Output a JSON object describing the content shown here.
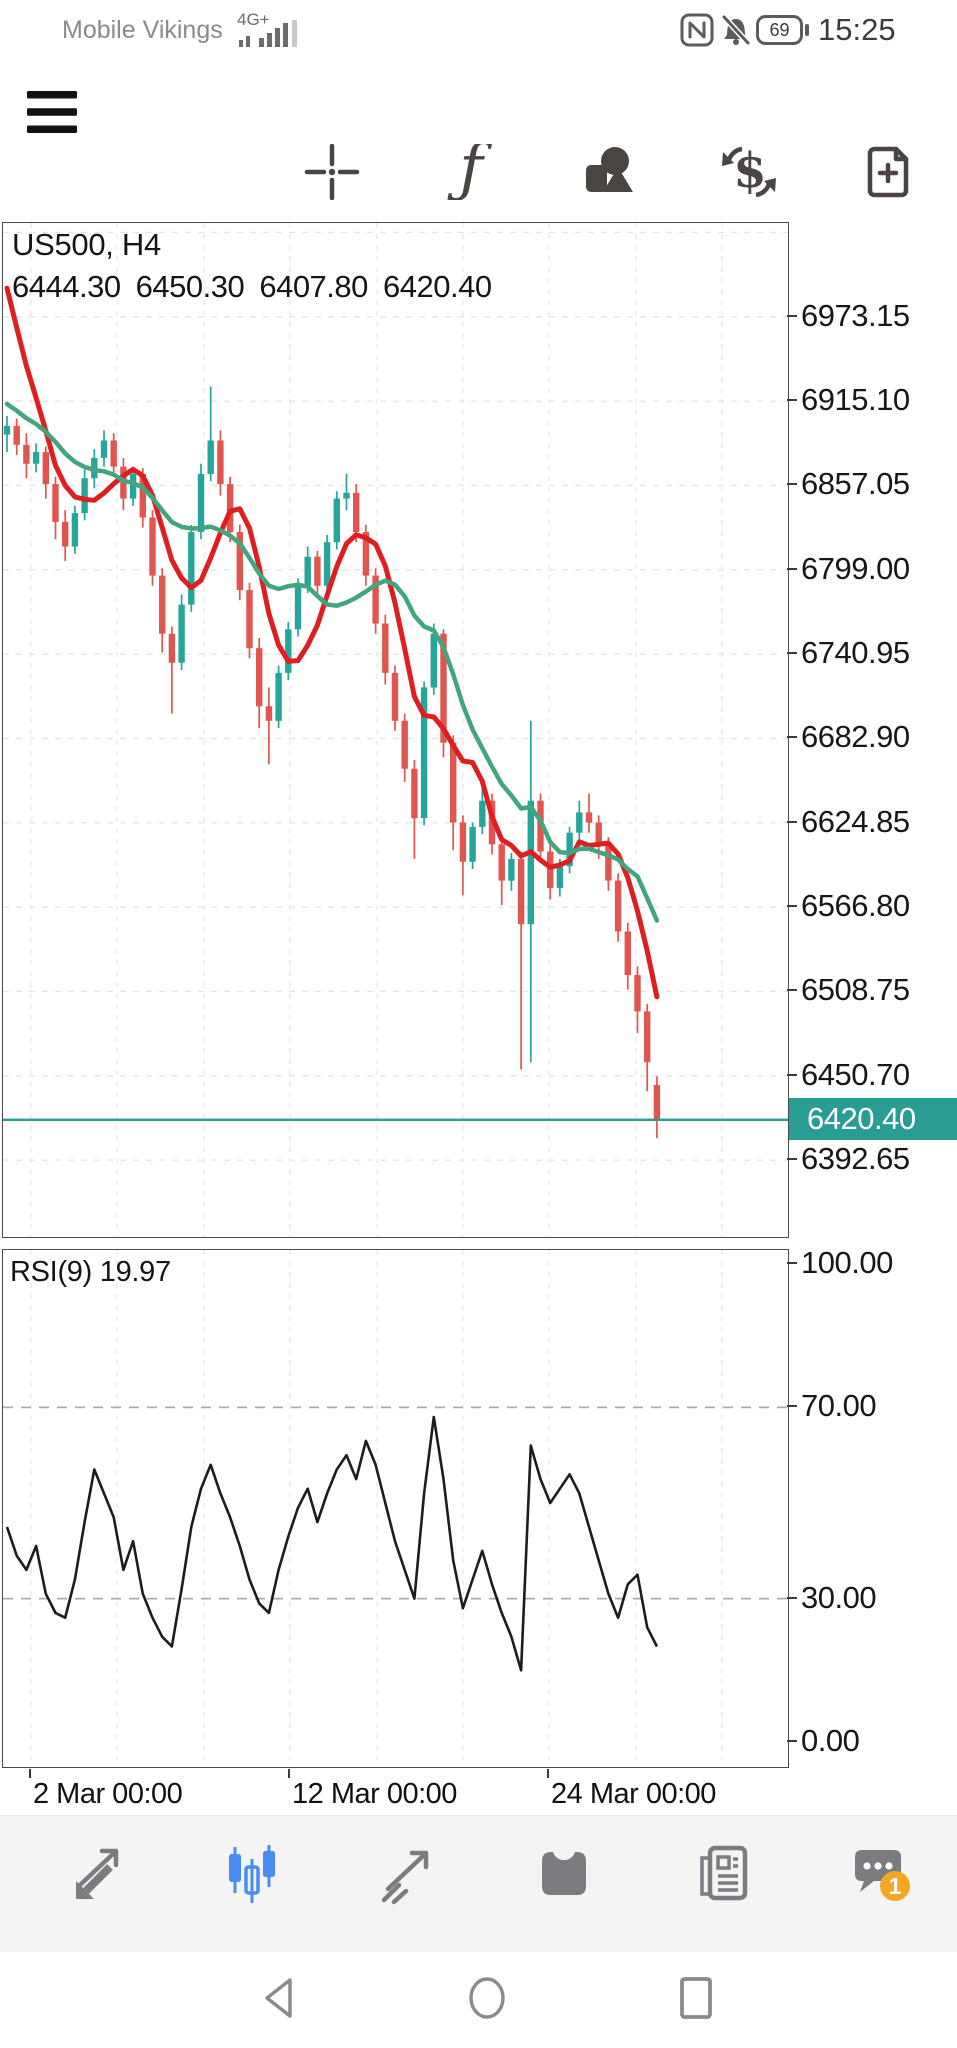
{
  "status_bar": {
    "carrier": "Mobile Vikings",
    "network": "4G+",
    "battery_level": "69",
    "time": "15:25",
    "icons": [
      "signal-bars-icon",
      "nfc-icon",
      "notifications-off-icon",
      "battery-icon"
    ]
  },
  "toolbar": {
    "items": [
      {
        "icon": "menu"
      },
      {
        "icon": "crosshair"
      },
      {
        "icon": "indicators-function"
      },
      {
        "icon": "chart-objects"
      },
      {
        "icon": "symbol-exchange"
      },
      {
        "icon": "new-order"
      }
    ]
  },
  "chart_data": {
    "colors": {
      "up": "#26a69a",
      "down": "#e0564e",
      "price_line": "#2a9d93",
      "grid": "#e9e9e9",
      "rsi_line": "#1c1c1c",
      "level_line": "#ababab",
      "accent_blue": "#4a8df0",
      "badge_orange": "#f5a623"
    },
    "main": {
      "type": "candlestick",
      "symbol_label": "US500, H4",
      "ohlc_label": "6444.30 6450.30 6407.80 6420.40",
      "open": 6444.3,
      "high": 6450.3,
      "low": 6407.8,
      "close": 6420.4,
      "current_price": 6420.4,
      "current_price_label": "6420.40",
      "price_top": 7037.7,
      "price_bottom": 6339.7,
      "ticks": [
        "6973.15",
        "6915.10",
        "6857.05",
        "6799.00",
        "6740.95",
        "6682.90",
        "6624.85",
        "6566.80",
        "6508.75",
        "6450.70",
        "6392.65"
      ],
      "grid_prices": [
        7031.2,
        6973.15,
        6915.1,
        6857.05,
        6799.0,
        6740.95,
        6682.9,
        6624.85,
        6566.8,
        6508.75,
        6450.7,
        6392.65
      ],
      "x0": 4,
      "dx": 9.7,
      "x_grid": [
        28,
        114,
        201,
        287,
        374,
        460,
        546,
        633,
        719
      ],
      "x_ticks": [
        {
          "x": 28,
          "label": "2 Mar 00:00"
        },
        {
          "x": 287,
          "label": "12 Mar 00:00"
        },
        {
          "x": 546,
          "label": "24 Mar 00:00"
        }
      ],
      "ohlc": [
        [
          6892,
          6905,
          6880,
          6898
        ],
        [
          6898,
          6903,
          6878,
          6885
        ],
        [
          6885,
          6893,
          6862,
          6872
        ],
        [
          6872,
          6886,
          6866,
          6880
        ],
        [
          6880,
          6884,
          6848,
          6858
        ],
        [
          6858,
          6863,
          6820,
          6832
        ],
        [
          6832,
          6840,
          6805,
          6815
        ],
        [
          6815,
          6843,
          6810,
          6838
        ],
        [
          6838,
          6868,
          6833,
          6862
        ],
        [
          6862,
          6882,
          6855,
          6876
        ],
        [
          6876,
          6895,
          6870,
          6888
        ],
        [
          6888,
          6893,
          6863,
          6870
        ],
        [
          6870,
          6876,
          6840,
          6848
        ],
        [
          6848,
          6870,
          6843,
          6865
        ],
        [
          6865,
          6869,
          6828,
          6835
        ],
        [
          6835,
          6840,
          6788,
          6795
        ],
        [
          6795,
          6800,
          6742,
          6755
        ],
        [
          6755,
          6760,
          6700,
          6735
        ],
        [
          6735,
          6782,
          6730,
          6775
        ],
        [
          6775,
          6830,
          6770,
          6825
        ],
        [
          6825,
          6872,
          6820,
          6865
        ],
        [
          6865,
          6925,
          6860,
          6888
        ],
        [
          6888,
          6895,
          6850,
          6858
        ],
        [
          6858,
          6863,
          6818,
          6825
        ],
        [
          6825,
          6830,
          6778,
          6785
        ],
        [
          6785,
          6790,
          6738,
          6745
        ],
        [
          6745,
          6752,
          6690,
          6705
        ],
        [
          6705,
          6718,
          6665,
          6695
        ],
        [
          6695,
          6733,
          6690,
          6728
        ],
        [
          6728,
          6763,
          6723,
          6758
        ],
        [
          6758,
          6793,
          6753,
          6788
        ],
        [
          6788,
          6815,
          6783,
          6808
        ],
        [
          6808,
          6812,
          6780,
          6788
        ],
        [
          6788,
          6823,
          6783,
          6818
        ],
        [
          6818,
          6853,
          6813,
          6848
        ],
        [
          6848,
          6865,
          6840,
          6852
        ],
        [
          6852,
          6858,
          6818,
          6825
        ],
        [
          6825,
          6830,
          6788,
          6795
        ],
        [
          6795,
          6800,
          6755,
          6762
        ],
        [
          6762,
          6768,
          6720,
          6728
        ],
        [
          6728,
          6733,
          6688,
          6695
        ],
        [
          6695,
          6700,
          6653,
          6662
        ],
        [
          6662,
          6668,
          6600,
          6628
        ],
        [
          6628,
          6722,
          6623,
          6718
        ],
        [
          6718,
          6762,
          6713,
          6755
        ],
        [
          6755,
          6758,
          6670,
          6680
        ],
        [
          6680,
          6685,
          6606,
          6625
        ],
        [
          6625,
          6630,
          6575,
          6598
        ],
        [
          6598,
          6625,
          6593,
          6622
        ],
        [
          6622,
          6648,
          6617,
          6640
        ],
        [
          6640,
          6645,
          6603,
          6610
        ],
        [
          6610,
          6615,
          6568,
          6585
        ],
        [
          6585,
          6604,
          6578,
          6600
        ],
        [
          6600,
          6605,
          6455,
          6555
        ],
        [
          6555,
          6695,
          6460,
          6640
        ],
        [
          6640,
          6645,
          6598,
          6605
        ],
        [
          6605,
          6610,
          6572,
          6580
        ],
        [
          6580,
          6600,
          6574,
          6595
        ],
        [
          6595,
          6622,
          6590,
          6618
        ],
        [
          6618,
          6640,
          6613,
          6632
        ],
        [
          6632,
          6645,
          6618,
          6625
        ],
        [
          6625,
          6630,
          6600,
          6610
        ],
        [
          6610,
          6615,
          6578,
          6585
        ],
        [
          6585,
          6590,
          6543,
          6550
        ],
        [
          6550,
          6556,
          6510,
          6520
        ],
        [
          6520,
          6526,
          6480,
          6495
        ],
        [
          6495,
          6500,
          6440,
          6460
        ],
        [
          6444.3,
          6450.3,
          6407.8,
          6420.4
        ]
      ],
      "indicators": [
        {
          "name": "ma-fast",
          "period": 6,
          "color": "#df1f1f",
          "width": 5,
          "seed": [
            7048,
            7030,
            7012,
            6994,
            6975
          ]
        },
        {
          "name": "ma-slow",
          "period": 12,
          "color": "#43a57e",
          "width": 4.5,
          "seed": [
            6940,
            6934,
            6928,
            6922,
            6916,
            6911,
            6907,
            6904,
            6901,
            6899,
            6897
          ]
        }
      ]
    },
    "rsi": {
      "type": "line",
      "label": "RSI(9) 19.97",
      "period": 9,
      "value": 19.97,
      "y0": 14,
      "scale": 4.78,
      "values": [
        45,
        39,
        36,
        41,
        31,
        27,
        26,
        34,
        46,
        57,
        52,
        47,
        36,
        42,
        31,
        26,
        22,
        20,
        32,
        45,
        53,
        58,
        52,
        47,
        41,
        34,
        29,
        27,
        36,
        43,
        49,
        53,
        46,
        52,
        57,
        60,
        55,
        63,
        58,
        50,
        42,
        36,
        30,
        52,
        68,
        55,
        38,
        28,
        34,
        40,
        33,
        27,
        22,
        15,
        62,
        55,
        50,
        53,
        56,
        52,
        45,
        38,
        31,
        26,
        33,
        35,
        24,
        19.97
      ],
      "levels": [
        {
          "v": 100,
          "label": "100.00",
          "dash": false
        },
        {
          "v": 70,
          "label": "70.00",
          "dash": true
        },
        {
          "v": 30,
          "label": "30.00",
          "dash": true
        },
        {
          "v": 0,
          "label": "0.00",
          "dash": false
        }
      ]
    }
  },
  "bottom_nav": {
    "items": [
      {
        "icon": "quotes",
        "active": false
      },
      {
        "icon": "charts",
        "active": true
      },
      {
        "icon": "trade",
        "active": false
      },
      {
        "icon": "history",
        "active": false
      },
      {
        "icon": "news",
        "active": false
      },
      {
        "icon": "messages",
        "active": false,
        "badge": "1"
      }
    ]
  },
  "android_nav": {
    "items": [
      {
        "icon": "back"
      },
      {
        "icon": "home"
      },
      {
        "icon": "recents"
      }
    ]
  }
}
